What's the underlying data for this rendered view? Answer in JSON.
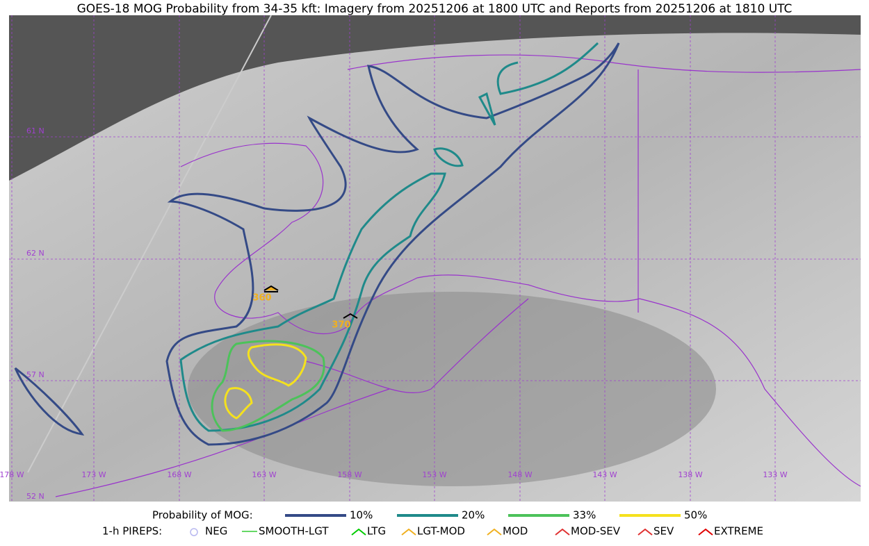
{
  "title": "GOES-18 MOG Probability from 34-35 kft: Imagery from 20251206 at 1800 UTC and Reports from 20251206 at 1810 UTC",
  "map": {
    "lat_labels": [
      "61 N",
      "62 N",
      "57 N",
      "52 N"
    ],
    "lon_labels": [
      "178 W",
      "173 W",
      "168 W",
      "163 W",
      "158 W",
      "153 W",
      "148 W",
      "143 W",
      "138 W",
      "133 W"
    ],
    "reports": [
      {
        "label": "360"
      },
      {
        "label": "370"
      }
    ]
  },
  "legend": {
    "probability": {
      "title": "Probability of MOG:",
      "items": [
        {
          "label": "10%",
          "color": "#344a86"
        },
        {
          "label": "20%",
          "color": "#1f8a8a"
        },
        {
          "label": "33%",
          "color": "#4cc25a"
        },
        {
          "label": "50%",
          "color": "#f5e11d"
        }
      ]
    },
    "pireps": {
      "title": "1-h PIREPS:",
      "items": [
        {
          "label": "NEG",
          "color": "#b8b8f0"
        },
        {
          "label": "SMOOTH-LGT",
          "color": "#33cc33"
        },
        {
          "label": "LTG",
          "color": "#00cc00"
        },
        {
          "label": "LGT-MOD",
          "color": "#f0b020"
        },
        {
          "label": "MOD",
          "color": "#f0b020"
        },
        {
          "label": "MOD-SEV",
          "color": "#e03030"
        },
        {
          "label": "SEV",
          "color": "#e03030"
        },
        {
          "label": "EXTREME",
          "color": "#e00000"
        }
      ]
    }
  }
}
